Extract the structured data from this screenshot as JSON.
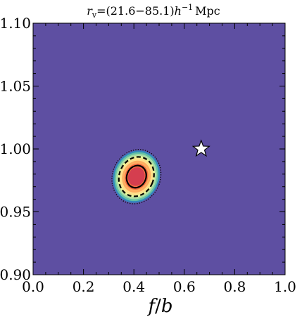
{
  "chart_data": {
    "type": "contour",
    "title": "r_v = (21.6–85.1)h^-1 Mpc",
    "title_parts": {
      "sym": "r",
      "sub": "v",
      "range": "=(21.6−85.1)",
      "h": "h",
      "exp": "−1",
      "unit": "Mpc"
    },
    "xlabel": "f/b",
    "xlabel_parts": {
      "a": "f",
      "slash": "/",
      "b": "b"
    },
    "ylabel": "",
    "xlim": [
      0.0,
      1.0
    ],
    "ylim": [
      0.9,
      1.1
    ],
    "xticks": [
      0.0,
      0.2,
      0.4,
      0.6,
      0.8,
      1.0
    ],
    "xtick_labels": [
      "0.0",
      "0.2",
      "0.4",
      "0.6",
      "0.8",
      "1.0"
    ],
    "yticks": [
      0.9,
      0.95,
      1.0,
      1.05,
      1.1
    ],
    "ytick_labels": [
      "0.90",
      "0.95",
      "1.00",
      "1.05",
      "1.10"
    ],
    "background_color": "#5e4fa2",
    "peak": {
      "x": 0.41,
      "y": 0.978
    },
    "contours": [
      {
        "level": "3-sigma",
        "style": "dotted",
        "rx": 0.095,
        "ry": 0.022
      },
      {
        "level": "2-sigma",
        "style": "dashed",
        "rx": 0.068,
        "ry": 0.016
      },
      {
        "level": "1-sigma",
        "style": "solid",
        "rx": 0.038,
        "ry": 0.009
      }
    ],
    "fill_colors": [
      "#5e4fa2",
      "#3288bd",
      "#66c2a5",
      "#abdda4",
      "#e6f598",
      "#fee08b",
      "#fdae61",
      "#f46d43",
      "#d53e4f"
    ],
    "marker": {
      "shape": "star",
      "x": 0.667,
      "y": 1.0,
      "color": "#ffffff"
    }
  }
}
